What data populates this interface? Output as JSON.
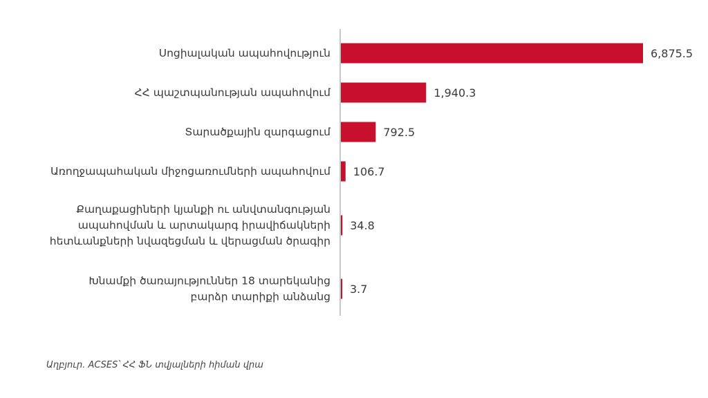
{
  "chart_data": {
    "type": "bar",
    "orientation": "horizontal",
    "categories": [
      [
        "Սոցիալական ապահովություն"
      ],
      [
        "ՀՀ պաշտպանության ապահովում"
      ],
      [
        "Տարածքային զարգացում"
      ],
      [
        "Առողջապահական միջոցառումների ապահովում"
      ],
      [
        "Քաղաքացիների կյանքի ու անվտանգության",
        "ապահովման և արտակարգ իրավիճակների",
        "հետևանքների նվազեցման և վերացման ծրագիր"
      ],
      [
        "Խնամքի ծառայություններ 18 տարեկանից",
        "բարձր տարիքի անձանց"
      ]
    ],
    "values": [
      6875.5,
      1940.3,
      792.5,
      106.7,
      34.8,
      3.7
    ],
    "value_labels": [
      "6,875.5",
      "1,940.3",
      "792.5",
      "106.7",
      "34.8",
      "3.7"
    ],
    "bar_color": "#c8102e",
    "axis_color": "#c8c8c8",
    "grid": false,
    "legend": "none"
  },
  "source_note": "Աղբյուր. ACSES՝ ՀՀ ՖՆ տվյալների հիման վրա"
}
